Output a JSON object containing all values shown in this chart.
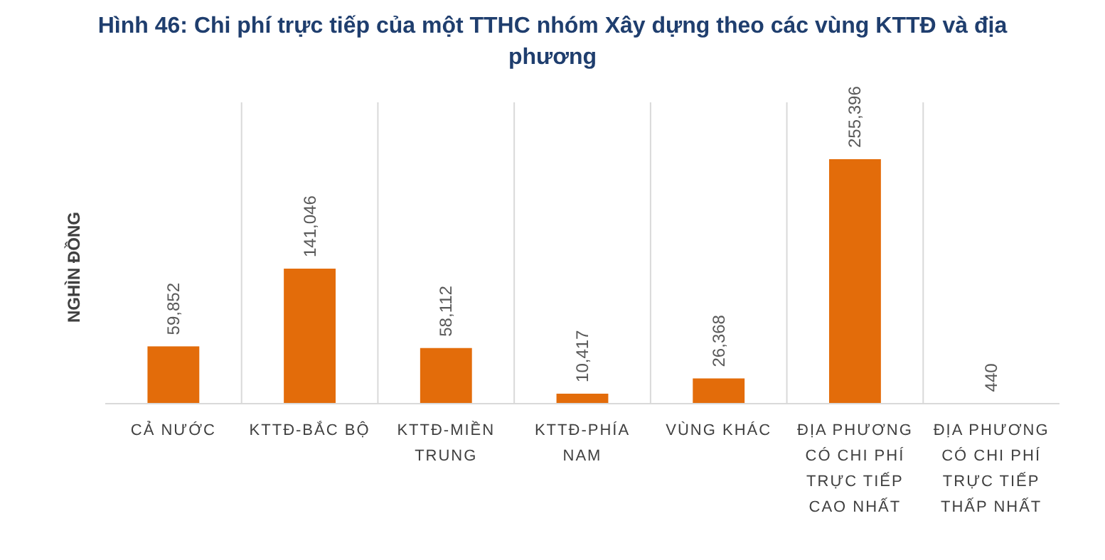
{
  "chart_data": {
    "type": "bar",
    "title": "Hình 46:  Chi phí trực tiếp của một TTHC nhóm Xây dựng theo các vùng KTTĐ và địa phương",
    "ylabel": "NGHÌN ĐỒNG",
    "categories": [
      "CẢ NƯỚC",
      "KTTĐ-BẮC BỘ",
      "KTTĐ-MIỀN TRUNG",
      "KTTĐ-PHÍA NAM",
      "VÙNG KHÁC",
      "ĐỊA PHƯƠNG CÓ CHI PHÍ TRỰC TIẾP CAO NHẤT",
      "ĐỊA PHƯƠNG CÓ CHI PHÍ TRỰC TIẾP THẤP NHẤT"
    ],
    "values": [
      59852,
      141046,
      58112,
      10417,
      26368,
      255396,
      440
    ],
    "value_labels": [
      "59,852",
      "141,046",
      "58,112",
      "10,417",
      "26,368",
      "255,396",
      "440"
    ],
    "color": "#e36c0a",
    "grid": "x"
  }
}
